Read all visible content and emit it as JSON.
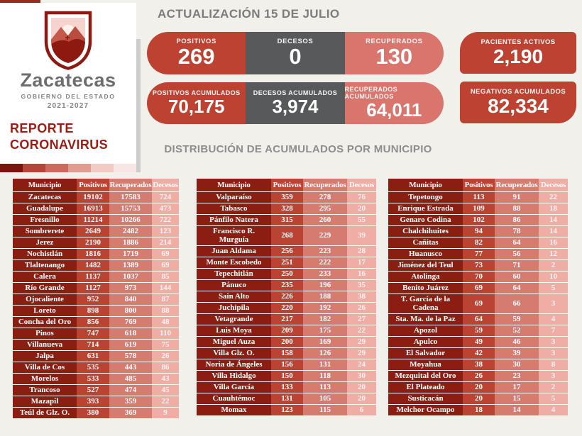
{
  "page": {
    "background": "#f2f0ea"
  },
  "logo": {
    "state_name": "Zacatecas",
    "government": "GOBIERNO DEL ESTADO",
    "period": "2021-2027",
    "report_title_line1": "REPORTE",
    "report_title_line2": "CORONAVIRUS",
    "strip_colors": [
      "#7a140e",
      "#b2463a",
      "#ca6b5e",
      "#e39b91",
      "#f3cbc6",
      "#f9e6e4"
    ]
  },
  "header": {
    "update_title": "ACTUALIZACIÓN 15 DE JULIO",
    "row1": [
      {
        "label": "POSITIVOS",
        "value": "269"
      },
      {
        "label": "DECESOS",
        "value": "0"
      },
      {
        "label": "RECUPERADOS",
        "value": "130"
      }
    ],
    "row2": [
      {
        "label": "POSITIVOS ACUMULADOS",
        "value": "70,175"
      },
      {
        "label": "DECESOS ACUMULADOS",
        "value": "3,974"
      },
      {
        "label": "RECUPERADOS ACUMULADOS",
        "value": "64,011"
      }
    ],
    "side_cards": [
      {
        "label": "PACIENTES ACTIVOS",
        "value": "2,190"
      },
      {
        "label": "NEGATIVOS ACUMULADOS",
        "value": "82,334"
      }
    ]
  },
  "section_title": "DISTRIBUCIÓN DE ACUMULADOS POR MUNICIPIO",
  "colors": {
    "accent_red": "#bd4232",
    "salmon": "#d9756c",
    "dark_gray": "#58595b",
    "table_maroon": "#8b1d12",
    "table_red": "#ba4334",
    "table_salmon": "#d67b70",
    "table_pink": "#f0ada5",
    "report_title_red": "#9e1b12",
    "title_gray": "#7b7c7e"
  },
  "tables": {
    "headers": [
      "Municipio",
      "Positivos",
      "Recuperados",
      "Decesos"
    ],
    "list": [
      {
        "rows": [
          [
            "Zacatecas",
            "19102",
            "17583",
            "724"
          ],
          [
            "Guadalupe",
            "16913",
            "15753",
            "473"
          ],
          [
            "Fresnillo",
            "11214",
            "10266",
            "722"
          ],
          [
            "Sombrerete",
            "2649",
            "2482",
            "123"
          ],
          [
            "Jerez",
            "2190",
            "1886",
            "214"
          ],
          [
            "Nochistlán",
            "1816",
            "1719",
            "69"
          ],
          [
            "Tlaltenango",
            "1482",
            "1389",
            "69"
          ],
          [
            "Calera",
            "1137",
            "1037",
            "85"
          ],
          [
            "Río Grande",
            "1127",
            "973",
            "144"
          ],
          [
            "Ojocaliente",
            "952",
            "840",
            "87"
          ],
          [
            "Loreto",
            "898",
            "800",
            "88"
          ],
          [
            "Concha del Oro",
            "856",
            "769",
            "48"
          ],
          [
            "Pinos",
            "747",
            "618",
            "110"
          ],
          [
            "Villanueva",
            "714",
            "619",
            "75"
          ],
          [
            "Jalpa",
            "631",
            "578",
            "26"
          ],
          [
            "Villa de Cos",
            "535",
            "443",
            "86"
          ],
          [
            "Morelos",
            "533",
            "485",
            "43"
          ],
          [
            "Trancoso",
            "527",
            "474",
            "45"
          ],
          [
            "Mazapil",
            "393",
            "359",
            "22"
          ],
          [
            "Teúl de Glz. O.",
            "380",
            "369",
            "9"
          ]
        ]
      },
      {
        "rows": [
          [
            "Valparaíso",
            "359",
            "278",
            "76"
          ],
          [
            "Tabasco",
            "328",
            "295",
            "20"
          ],
          [
            "Pánfilo Natera",
            "315",
            "260",
            "55"
          ],
          [
            "Francisco R. Murguía",
            "268",
            "229",
            "39"
          ],
          [
            "Juan Aldama",
            "256",
            "223",
            "28"
          ],
          [
            "Monte Escobedo",
            "251",
            "222",
            "17"
          ],
          [
            "Tepechitlán",
            "250",
            "233",
            "16"
          ],
          [
            "Pánuco",
            "235",
            "196",
            "35"
          ],
          [
            "Sain Alto",
            "226",
            "188",
            "38"
          ],
          [
            "Juchipila",
            "220",
            "192",
            "26"
          ],
          [
            "Vetagrande",
            "217",
            "182",
            "27"
          ],
          [
            "Luis Moya",
            "209",
            "175",
            "22"
          ],
          [
            "Miguel Auza",
            "200",
            "169",
            "29"
          ],
          [
            "Villa Glz. O.",
            "158",
            "126",
            "29"
          ],
          [
            "Noria de Ángeles",
            "156",
            "131",
            "24"
          ],
          [
            "Villa Hidalgo",
            "150",
            "118",
            "30"
          ],
          [
            "Villa García",
            "133",
            "113",
            "20"
          ],
          [
            "Cuauhtémoc",
            "131",
            "105",
            "20"
          ],
          [
            "Momax",
            "123",
            "115",
            "6"
          ]
        ]
      },
      {
        "rows": [
          [
            "Tepetongo",
            "113",
            "91",
            "22"
          ],
          [
            "Enrique Estrada",
            "109",
            "88",
            "18"
          ],
          [
            "Genaro Codina",
            "102",
            "86",
            "14"
          ],
          [
            "Chalchihuites",
            "94",
            "78",
            "14"
          ],
          [
            "Cañitas",
            "82",
            "64",
            "16"
          ],
          [
            "Huanusco",
            "77",
            "56",
            "12"
          ],
          [
            "Jiménez del Teul",
            "73",
            "71",
            "2"
          ],
          [
            "Atolinga",
            "70",
            "60",
            "10"
          ],
          [
            "Benito Juárez",
            "69",
            "64",
            "5"
          ],
          [
            "T. García de la Cadena",
            "69",
            "66",
            "3"
          ],
          [
            "Sta. Ma. de la Paz",
            "64",
            "59",
            "4"
          ],
          [
            "Apozol",
            "59",
            "52",
            "7"
          ],
          [
            "Apulco",
            "49",
            "46",
            "3"
          ],
          [
            "El Salvador",
            "42",
            "39",
            "3"
          ],
          [
            "Moyahua",
            "38",
            "30",
            "8"
          ],
          [
            "Mezquital del Oro",
            "26",
            "23",
            "3"
          ],
          [
            "El Plateado",
            "20",
            "17",
            "2"
          ],
          [
            "Susticacán",
            "20",
            "15",
            "5"
          ],
          [
            "Melchor Ocampo",
            "18",
            "14",
            "4"
          ]
        ]
      }
    ]
  }
}
